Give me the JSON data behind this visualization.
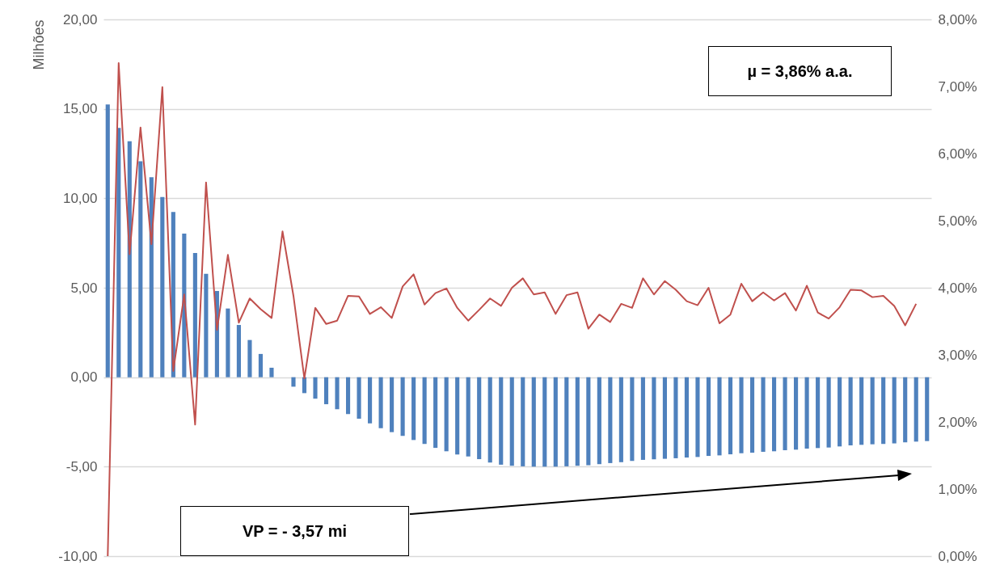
{
  "chart_data": {
    "type": "bar",
    "ylabel": "Milhões",
    "categories": [
      null,
      null,
      null,
      null,
      null,
      null,
      null,
      null,
      null,
      null,
      null,
      null,
      null,
      null,
      null,
      null,
      null,
      null,
      null,
      null,
      null,
      null,
      null,
      null,
      null,
      null,
      null,
      null,
      null,
      null,
      null,
      null,
      null,
      null,
      null,
      null,
      null,
      null,
      null,
      null,
      null,
      null,
      null,
      null,
      null,
      null,
      null,
      null,
      null,
      null,
      null,
      null,
      null,
      null,
      null,
      null,
      null,
      null,
      null,
      null,
      null,
      null,
      null,
      null,
      null,
      null,
      null,
      null,
      null,
      null,
      null,
      null,
      null,
      null,
      null,
      null
    ],
    "series": [
      {
        "color": "#4f81bd",
        "values": [
          15.24,
          13.93,
          13.19,
          12.07,
          11.18,
          10.07,
          9.24,
          8.03,
          6.94,
          5.78,
          4.82,
          3.84,
          2.92,
          2.08,
          1.3,
          0.53,
          0,
          -0.53,
          -0.89,
          -1.2,
          -1.51,
          -1.79,
          -2.06,
          -2.32,
          -2.58,
          -2.85,
          -3.07,
          -3.28,
          -3.51,
          -3.73,
          -3.95,
          -4.14,
          -4.32,
          -4.43,
          -4.58,
          -4.77,
          -4.89,
          -4.95,
          -4.98,
          -5.0,
          -5.0,
          -5.0,
          -4.98,
          -4.95,
          -4.92,
          -4.86,
          -4.8,
          -4.75,
          -4.68,
          -4.62,
          -4.59,
          -4.56,
          -4.53,
          -4.49,
          -4.46,
          -4.4,
          -4.37,
          -4.31,
          -4.25,
          -4.22,
          -4.17,
          -4.14,
          -4.08,
          -4.05,
          -3.99,
          -3.96,
          -3.93,
          -3.87,
          -3.81,
          -3.78,
          -3.75,
          -3.73,
          -3.7,
          -3.64,
          -3.6,
          -3.57
        ]
      },
      {
        "type": "line",
        "axis": "y2",
        "color": "#c0504d",
        "values": [
          0.0,
          7.35,
          4.5,
          6.39,
          4.65,
          6.99,
          2.76,
          3.9,
          1.96,
          5.57,
          3.37,
          4.49,
          3.48,
          3.84,
          3.68,
          3.55,
          4.84,
          3.88,
          2.65,
          3.7,
          3.46,
          3.51,
          3.88,
          3.87,
          3.61,
          3.71,
          3.55,
          4.02,
          4.2,
          3.75,
          3.92,
          3.99,
          3.7,
          3.51,
          3.67,
          3.84,
          3.73,
          4.0,
          4.14,
          3.9,
          3.93,
          3.61,
          3.89,
          3.93,
          3.39,
          3.6,
          3.49,
          3.76,
          3.7,
          4.14,
          3.9,
          4.1,
          3.97,
          3.8,
          3.74,
          4.0,
          3.47,
          3.6,
          4.06,
          3.8,
          3.93,
          3.81,
          3.92,
          3.66,
          4.03,
          3.63,
          3.54,
          3.71,
          3.97,
          3.96,
          3.86,
          3.88,
          3.73,
          3.44,
          3.76,
          null
        ]
      }
    ],
    "ylim": [
      -10,
      20
    ],
    "yticks": [
      {
        "value": -10,
        "label": "-10,00"
      },
      {
        "value": -5,
        "label": "-5,00"
      },
      {
        "value": 0,
        "label": "0,00"
      },
      {
        "value": 5,
        "label": "5,00"
      },
      {
        "value": 10,
        "label": "10,00"
      },
      {
        "value": 15,
        "label": "15,00"
      },
      {
        "value": 20,
        "label": "20,00"
      }
    ],
    "y2lim": [
      0,
      8
    ],
    "y2ticks": [
      {
        "value": 0,
        "label": "0,00%"
      },
      {
        "value": 1,
        "label": "1,00%"
      },
      {
        "value": 2,
        "label": "2,00%"
      },
      {
        "value": 3,
        "label": "3,00%"
      },
      {
        "value": 4,
        "label": "4,00%"
      },
      {
        "value": 5,
        "label": "5,00%"
      },
      {
        "value": 6,
        "label": "6,00%"
      },
      {
        "value": 7,
        "label": "7,00%"
      },
      {
        "value": 8,
        "label": "8,00%"
      }
    ],
    "grid": "y",
    "marker": "none",
    "line_style": "solid",
    "annotations": [
      "µ = 3,86% a.a.",
      "VP = - 3,57 mi"
    ]
  }
}
